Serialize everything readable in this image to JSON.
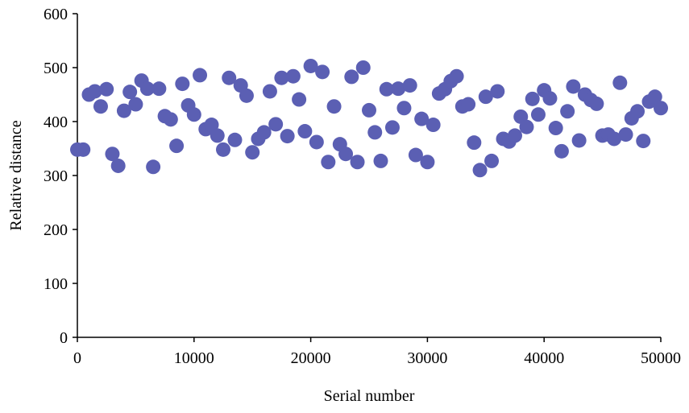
{
  "chart_data": {
    "type": "scatter",
    "xlabel": "Serial number",
    "ylabel": "Relative distance",
    "xlim": [
      0,
      50000
    ],
    "ylim": [
      0,
      600
    ],
    "xticks": [
      0,
      10000,
      20000,
      30000,
      40000,
      50000
    ],
    "yticks": [
      0,
      100,
      200,
      300,
      400,
      500,
      600
    ],
    "xtick_labels": [
      "0",
      "10000",
      "20000",
      "30000",
      "40000",
      "50000"
    ],
    "ytick_labels": [
      "0",
      "100",
      "200",
      "300",
      "400",
      "500",
      "600"
    ],
    "grid": false,
    "legend": "none",
    "marker_color": "#5b5fb3",
    "series": [
      {
        "points": [
          [
            0,
            348
          ],
          [
            500,
            348
          ],
          [
            1000,
            450
          ],
          [
            1500,
            456
          ],
          [
            2000,
            428
          ],
          [
            2500,
            460
          ],
          [
            3000,
            340
          ],
          [
            3500,
            318
          ],
          [
            4000,
            420
          ],
          [
            4500,
            455
          ],
          [
            5000,
            432
          ],
          [
            5500,
            476
          ],
          [
            6000,
            461
          ],
          [
            6500,
            316
          ],
          [
            7000,
            461
          ],
          [
            7500,
            410
          ],
          [
            8000,
            404
          ],
          [
            8500,
            355
          ],
          [
            9000,
            470
          ],
          [
            9500,
            430
          ],
          [
            10000,
            413
          ],
          [
            10500,
            486
          ],
          [
            11000,
            386
          ],
          [
            11500,
            394
          ],
          [
            12000,
            374
          ],
          [
            12500,
            348
          ],
          [
            13000,
            481
          ],
          [
            13500,
            366
          ],
          [
            14000,
            467
          ],
          [
            14500,
            448
          ],
          [
            15000,
            343
          ],
          [
            15500,
            368
          ],
          [
            16000,
            380
          ],
          [
            16500,
            456
          ],
          [
            17000,
            395
          ],
          [
            17500,
            481
          ],
          [
            18000,
            373
          ],
          [
            18500,
            484
          ],
          [
            19000,
            441
          ],
          [
            19500,
            382
          ],
          [
            20000,
            503
          ],
          [
            20500,
            362
          ],
          [
            21000,
            492
          ],
          [
            21500,
            325
          ],
          [
            22000,
            428
          ],
          [
            22500,
            358
          ],
          [
            23000,
            340
          ],
          [
            23500,
            483
          ],
          [
            24000,
            325
          ],
          [
            24500,
            500
          ],
          [
            25000,
            421
          ],
          [
            25500,
            380
          ],
          [
            26000,
            327
          ],
          [
            26500,
            460
          ],
          [
            27000,
            389
          ],
          [
            27500,
            461
          ],
          [
            28000,
            425
          ],
          [
            28500,
            467
          ],
          [
            29000,
            338
          ],
          [
            29500,
            405
          ],
          [
            30000,
            325
          ],
          [
            30500,
            394
          ],
          [
            31000,
            452
          ],
          [
            31500,
            460
          ],
          [
            32000,
            475
          ],
          [
            32500,
            484
          ],
          [
            33000,
            428
          ],
          [
            33500,
            432
          ],
          [
            34000,
            361
          ],
          [
            34500,
            310
          ],
          [
            35000,
            446
          ],
          [
            35500,
            327
          ],
          [
            36000,
            456
          ],
          [
            36500,
            368
          ],
          [
            37000,
            363
          ],
          [
            37500,
            374
          ],
          [
            38000,
            409
          ],
          [
            38500,
            390
          ],
          [
            39000,
            442
          ],
          [
            39500,
            413
          ],
          [
            40000,
            458
          ],
          [
            40500,
            443
          ],
          [
            41000,
            388
          ],
          [
            41500,
            345
          ],
          [
            42000,
            419
          ],
          [
            42500,
            465
          ],
          [
            43000,
            365
          ],
          [
            43500,
            450
          ],
          [
            44000,
            440
          ],
          [
            44500,
            433
          ],
          [
            45000,
            374
          ],
          [
            45500,
            376
          ],
          [
            46000,
            368
          ],
          [
            46500,
            472
          ],
          [
            47000,
            376
          ],
          [
            47500,
            406
          ],
          [
            48000,
            419
          ],
          [
            48500,
            364
          ],
          [
            49000,
            437
          ],
          [
            49500,
            446
          ],
          [
            50000,
            425
          ]
        ]
      }
    ]
  }
}
